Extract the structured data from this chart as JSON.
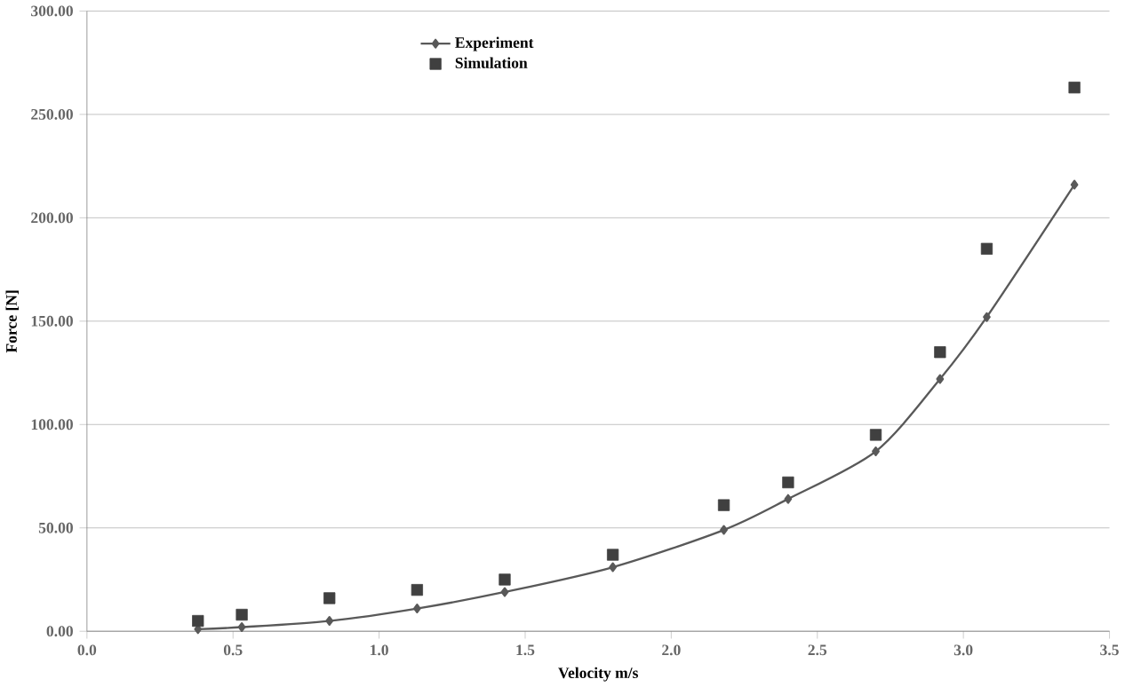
{
  "chart_data": {
    "type": "line",
    "xlabel": "Velocity m/s",
    "ylabel": "Force [N]",
    "xlim": [
      0,
      3.5
    ],
    "ylim": [
      0,
      300
    ],
    "xticks": [
      {
        "value": 0,
        "label": "0.0"
      },
      {
        "value": 0.5,
        "label": "0.5"
      },
      {
        "value": 1,
        "label": "1.0"
      },
      {
        "value": 1.5,
        "label": "1.5"
      },
      {
        "value": 2,
        "label": "2.0"
      },
      {
        "value": 2.5,
        "label": "2.5"
      },
      {
        "value": 3,
        "label": "3.0"
      },
      {
        "value": 3.5,
        "label": "3.5"
      }
    ],
    "yticks": [
      {
        "value": 0,
        "label": "0.00"
      },
      {
        "value": 50,
        "label": "50.00"
      },
      {
        "value": 100,
        "label": "100.00"
      },
      {
        "value": 150,
        "label": "150.00"
      },
      {
        "value": 200,
        "label": "200.00"
      },
      {
        "value": 250,
        "label": "250.00"
      },
      {
        "value": 300,
        "label": "300.00"
      }
    ],
    "grid": "y",
    "legend": "top",
    "series": [
      {
        "name": "Experiment",
        "marker": "diamond",
        "color": "#595959",
        "x": [
          0.38,
          0.53,
          0.83,
          1.13,
          1.43,
          1.8,
          2.18,
          2.4,
          2.7,
          2.92,
          3.08,
          3.38
        ],
        "values": [
          1,
          2,
          5,
          11,
          19,
          31,
          49,
          64,
          87,
          122,
          152,
          216
        ]
      },
      {
        "name": "Simulation",
        "type": "scatter",
        "marker": "square",
        "color": "#404040",
        "x": [
          0.38,
          0.53,
          0.83,
          1.13,
          1.43,
          1.8,
          2.18,
          2.4,
          2.7,
          2.92,
          3.08,
          3.38
        ],
        "values": [
          5,
          8,
          16,
          20,
          25,
          37,
          61,
          72,
          95,
          135,
          185,
          263
        ]
      }
    ]
  }
}
